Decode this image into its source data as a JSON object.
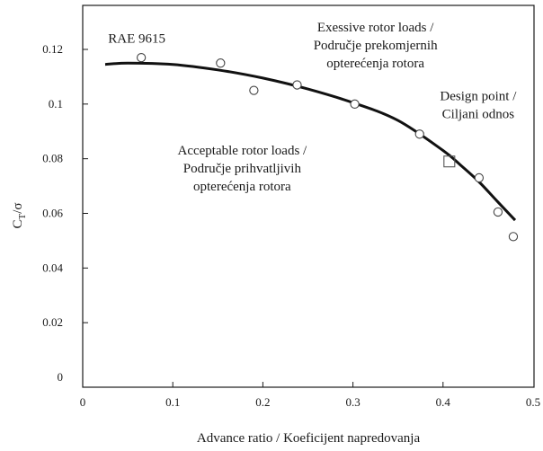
{
  "chart_data": {
    "type": "scatter",
    "title": "",
    "xlabel": "Advance ratio / Koeficijent napredovanja",
    "ylabel_main": "C",
    "ylabel_sub": "T",
    "ylabel_tail": "/σ",
    "xlim": [
      0,
      0.5
    ],
    "ylim": [
      0,
      0.13
    ],
    "x_ticks": [
      0,
      0.1,
      0.2,
      0.3,
      0.4,
      0.5
    ],
    "x_tick_labels": [
      "0",
      "0.1",
      "0.2",
      "0.3",
      "0.4",
      "0.5"
    ],
    "y_ticks": [
      0,
      0.02,
      0.04,
      0.06,
      0.08,
      0.1,
      0.12
    ],
    "y_tick_labels": [
      "0",
      "0.02",
      "0.04",
      "0.06",
      "0.08",
      "0.1",
      "0.12"
    ],
    "grid": false,
    "series": [
      {
        "name": "RAE 9615",
        "marker": "circle",
        "x": [
          0.065,
          0.153,
          0.19,
          0.238,
          0.302,
          0.374,
          0.44,
          0.461,
          0.478
        ],
        "y": [
          0.117,
          0.115,
          0.105,
          0.107,
          0.1,
          0.089,
          0.073,
          0.0605,
          0.0515
        ]
      },
      {
        "name": "Design point / Ciljani odnos",
        "marker": "square",
        "x": [
          0.407
        ],
        "y": [
          0.079
        ]
      },
      {
        "name": "fit-curve",
        "marker": "line",
        "x": [
          0.025,
          0.05,
          0.1,
          0.15,
          0.2,
          0.25,
          0.3,
          0.35,
          0.4,
          0.42,
          0.44,
          0.46,
          0.48
        ],
        "y": [
          0.1145,
          0.115,
          0.1145,
          0.1125,
          0.1095,
          0.1055,
          0.1005,
          0.094,
          0.083,
          0.0775,
          0.0715,
          0.0645,
          0.0575
        ]
      }
    ],
    "annotations": [
      {
        "id": "rae",
        "lines": [
          "RAE 9615"
        ],
        "x": 0.06,
        "y": 0.1225,
        "anchor": "middle"
      },
      {
        "id": "excessive",
        "lines": [
          "Exessive rotor loads /",
          "Područje prekomjernih",
          "opterećenja rotora"
        ],
        "x": 0.325,
        "y": 0.1265,
        "anchor": "middle"
      },
      {
        "id": "design",
        "lines": [
          "Design point /",
          "Ciljani odnos"
        ],
        "x": 0.439,
        "y": 0.1015,
        "anchor": "middle"
      },
      {
        "id": "acceptable",
        "lines": [
          "Acceptable rotor loads /",
          "Područje prihvatljivih",
          "opterećenja rotora"
        ],
        "x": 0.177,
        "y": 0.0815,
        "anchor": "middle"
      }
    ],
    "colors": {
      "ink": "#1a1a1a",
      "marker_edge": "#444444",
      "square_edge": "#555555"
    }
  }
}
